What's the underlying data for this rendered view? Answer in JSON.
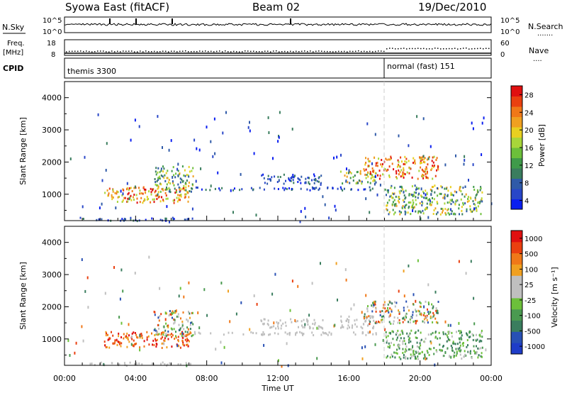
{
  "header": {
    "title_left": "Syowa East (fitACF)",
    "title_center": "Beam 02",
    "title_right": "19/Dec/2010"
  },
  "sky_panel": {
    "left_label": "N.Sky",
    "left_ticks": [
      "10^5",
      "10^0"
    ],
    "right_ticks": [
      "10^5",
      "10^0"
    ],
    "right_label": "N.Search"
  },
  "freq_panel": {
    "left_label": "Freq.",
    "left_unit": "[MHz]",
    "left_ticks": [
      "18",
      "8"
    ],
    "right_ticks": [
      "60",
      "0"
    ],
    "right_label": "Nave",
    "right_symbol": "....",
    "search_symbol": "......."
  },
  "cpid_panel": {
    "label": "CPID",
    "segments": [
      "themis 3300",
      "normal (fast) 151"
    ],
    "switch_time_h": 18.0
  },
  "chart_data": [
    {
      "type": "heatmap",
      "title": "Power",
      "ylabel": "Slant Range [km]",
      "xlabel": "Time UT",
      "xlim_hours": [
        0,
        24
      ],
      "ylim": [
        180,
        4500
      ],
      "yticks": [
        1000,
        2000,
        3000,
        4000
      ],
      "xticks": [
        "00:00",
        "04:00",
        "08:00",
        "12:00",
        "16:00",
        "20:00",
        "00:00"
      ],
      "colorbar": {
        "label": "Power [dB]",
        "ticks": [
          "28",
          "24",
          "20",
          "16",
          "12",
          "8",
          "4"
        ],
        "colors": [
          "#0a1ef0",
          "#2846c8",
          "#2f5aa8",
          "#3a7d5e",
          "#3f9a4a",
          "#6cbf3a",
          "#a8d63a",
          "#e8d020",
          "#f0a020",
          "#f07818",
          "#ea4010",
          "#e01010"
        ]
      },
      "echo_regions": [
        {
          "t": [
            0.8,
            7.2
          ],
          "r": [
            200,
            300
          ],
          "level": "low"
        },
        {
          "t": [
            2.2,
            7.0
          ],
          "r": [
            750,
            1250
          ],
          "level": "high"
        },
        {
          "t": [
            5.0,
            7.2
          ],
          "r": [
            1100,
            1900
          ],
          "level": "mid"
        },
        {
          "t": [
            7.0,
            17.5
          ],
          "r": [
            1150,
            1250
          ],
          "level": "low"
        },
        {
          "t": [
            11.0,
            14.5
          ],
          "r": [
            1350,
            1650
          ],
          "level": "low"
        },
        {
          "t": [
            15.5,
            17.5
          ],
          "r": [
            1350,
            1750
          ],
          "level": "mid"
        },
        {
          "t": [
            16.8,
            21.0
          ],
          "r": [
            1500,
            2200
          ],
          "level": "high"
        },
        {
          "t": [
            18.0,
            23.5
          ],
          "r": [
            400,
            1300
          ],
          "level": "mid"
        }
      ]
    },
    {
      "type": "heatmap",
      "title": "Velocity",
      "ylabel": "Slant Range [km]",
      "xlabel": "Time UT",
      "xlim_hours": [
        0,
        24
      ],
      "ylim": [
        180,
        4500
      ],
      "yticks": [
        1000,
        2000,
        3000,
        4000
      ],
      "xticks": [
        "00:00",
        "04:00",
        "08:00",
        "12:00",
        "16:00",
        "20:00",
        "00:00"
      ],
      "colorbar": {
        "label": "Velocity [m s⁻¹]",
        "ticks": [
          "1000",
          "500",
          "100",
          "25",
          "-25",
          "-100",
          "-500",
          "-1000"
        ],
        "colors": [
          "#1e3cc8",
          "#2850b4",
          "#3a7d5e",
          "#4a9a50",
          "#6cc03a",
          "#bfbfbf",
          "#bfbfbf",
          "#f0a020",
          "#f07818",
          "#ea4010",
          "#e01010"
        ]
      },
      "echo_regions": [
        {
          "t": [
            0.8,
            7.2
          ],
          "r": [
            200,
            300
          ],
          "level": "neutral"
        },
        {
          "t": [
            2.2,
            7.0
          ],
          "r": [
            750,
            1250
          ],
          "level": "away"
        },
        {
          "t": [
            5.0,
            7.2
          ],
          "r": [
            1100,
            1900
          ],
          "level": "mixed"
        },
        {
          "t": [
            7.0,
            17.5
          ],
          "r": [
            1150,
            1250
          ],
          "level": "neutral"
        },
        {
          "t": [
            11.0,
            14.5
          ],
          "r": [
            1350,
            1650
          ],
          "level": "neutral"
        },
        {
          "t": [
            15.5,
            17.5
          ],
          "r": [
            1350,
            1750
          ],
          "level": "neutral"
        },
        {
          "t": [
            16.8,
            21.0
          ],
          "r": [
            1500,
            2200
          ],
          "level": "mixed"
        },
        {
          "t": [
            18.0,
            23.5
          ],
          "r": [
            400,
            1300
          ],
          "level": "toward"
        }
      ]
    }
  ]
}
